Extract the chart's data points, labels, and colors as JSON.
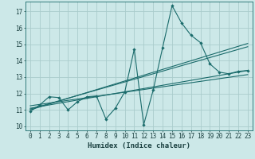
{
  "title": "",
  "xlabel": "Humidex (Indice chaleur)",
  "bg_color": "#cce8e8",
  "grid_color": "#aacccc",
  "line_color": "#1a6b6b",
  "xlim": [
    -0.5,
    23.5
  ],
  "ylim": [
    9.75,
    17.6
  ],
  "xticks": [
    0,
    1,
    2,
    3,
    4,
    5,
    6,
    7,
    8,
    9,
    10,
    11,
    12,
    13,
    14,
    15,
    16,
    17,
    18,
    19,
    20,
    21,
    22,
    23
  ],
  "yticks": [
    10,
    11,
    12,
    13,
    14,
    15,
    16,
    17
  ],
  "zigzag_x": [
    0,
    1,
    2,
    3,
    4,
    5,
    6,
    7,
    8,
    9,
    10,
    11,
    12,
    13,
    14,
    15,
    16,
    17,
    18,
    19,
    20,
    21,
    22,
    23
  ],
  "zigzag_y": [
    10.9,
    11.3,
    11.8,
    11.75,
    11.0,
    11.5,
    11.8,
    11.85,
    10.45,
    11.1,
    12.1,
    14.7,
    10.1,
    12.2,
    14.8,
    17.35,
    16.3,
    15.55,
    15.1,
    13.8,
    13.3,
    13.2,
    13.35,
    13.4
  ],
  "line1_x": [
    0,
    23
  ],
  "line1_y": [
    11.1,
    13.4
  ],
  "line2_x": [
    0,
    23
  ],
  "line2_y": [
    11.25,
    13.15
  ],
  "line3_x": [
    0,
    23
  ],
  "line3_y": [
    11.05,
    14.85
  ],
  "line4_x": [
    0,
    23
  ],
  "line4_y": [
    11.0,
    15.05
  ]
}
